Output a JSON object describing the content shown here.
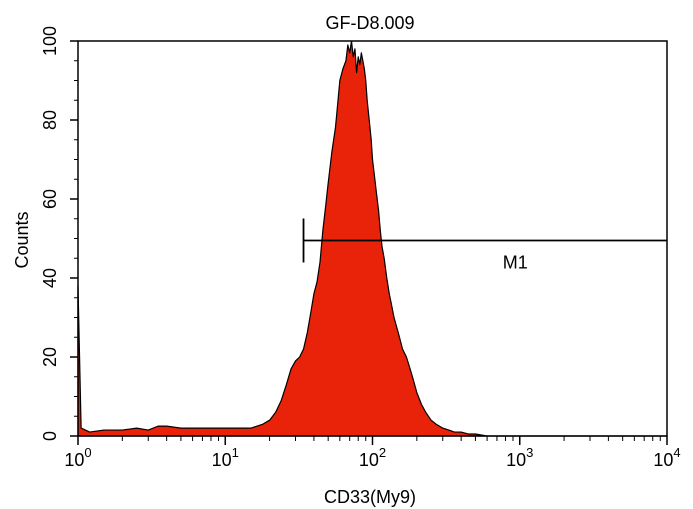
{
  "chart_data": {
    "type": "area",
    "title": "GF-D8.009",
    "xlabel": "CD33(My9)",
    "ylabel": "Counts",
    "x_scale": "log",
    "xlim": [
      1,
      10000
    ],
    "ylim": [
      0,
      100
    ],
    "x_ticks": [
      {
        "base": "10",
        "exp": "0",
        "value": 1
      },
      {
        "base": "10",
        "exp": "1",
        "value": 10
      },
      {
        "base": "10",
        "exp": "2",
        "value": 100
      },
      {
        "base": "10",
        "exp": "3",
        "value": 1000
      },
      {
        "base": "10",
        "exp": "4",
        "value": 10000
      }
    ],
    "y_ticks": [
      "0",
      "20",
      "40",
      "60",
      "80",
      "100"
    ],
    "fill_color": "#e8230a",
    "marker": {
      "label": "M1",
      "x_start": 34,
      "x_end": 10000,
      "y": 49.5
    },
    "series": [
      {
        "x": [
          1,
          1.05,
          1.2,
          1.5,
          2,
          2.5,
          3,
          3.5,
          4,
          5,
          6,
          8,
          10,
          12,
          15,
          18,
          20,
          22,
          24,
          26,
          28,
          30,
          32,
          34,
          36,
          38,
          40,
          42,
          44,
          46,
          48,
          50,
          53,
          56,
          58,
          60,
          63,
          66,
          68,
          70,
          72,
          74,
          76,
          78,
          80,
          82,
          84,
          86,
          88,
          90,
          92,
          95,
          98,
          100,
          103,
          106,
          110,
          113,
          116,
          120,
          125,
          130,
          135,
          140,
          150,
          160,
          170,
          180,
          190,
          200,
          215,
          230,
          250,
          270,
          300,
          330,
          360,
          400,
          450,
          500,
          600,
          1000,
          2000,
          5000,
          10000
        ],
        "y": [
          38,
          2,
          1,
          1.5,
          1.5,
          2,
          1.5,
          2.5,
          2.5,
          2,
          2,
          2,
          2,
          2,
          2,
          3,
          4,
          6,
          9,
          13,
          17,
          19,
          20,
          22,
          26,
          31,
          36,
          39,
          44,
          52,
          58,
          64,
          72,
          78,
          84,
          90,
          93,
          95,
          99,
          97,
          100,
          96,
          98,
          92,
          96,
          94,
          97,
          95,
          93,
          90,
          85,
          80,
          75,
          70,
          66,
          62,
          57,
          52,
          48,
          45,
          40,
          36,
          33,
          30,
          26,
          22,
          20,
          17,
          14,
          11,
          8,
          6,
          4,
          3,
          2,
          1.5,
          1,
          1,
          0.5,
          0.5,
          0,
          0,
          0,
          0,
          0
        ]
      }
    ]
  }
}
